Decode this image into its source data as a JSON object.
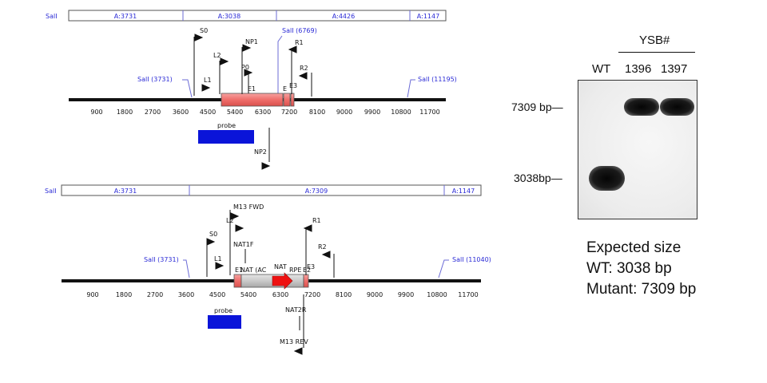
{
  "wt_map": {
    "segments": [
      "A:3731",
      "A:3038",
      "A:4426",
      "A:1147"
    ],
    "end_label_left": "SalI",
    "sites": [
      "SalI (3731)",
      "SalI (6769)",
      "SalI (11195)"
    ],
    "ticks": [
      "900",
      "1800",
      "2700",
      "3600",
      "4500",
      "5400",
      "6300",
      "7200",
      "8100",
      "9000",
      "9900",
      "10800",
      "11700"
    ],
    "primers": [
      "S0",
      "NP1",
      "L2",
      "P0",
      "L1",
      "E1",
      "R1",
      "R2",
      "E",
      "E3",
      "NP2"
    ],
    "probe": "probe"
  },
  "mut_map": {
    "segments": [
      "A:3731",
      "A:7309",
      "A:1147"
    ],
    "end_label_left": "SalI",
    "sites": [
      "SalI (3731)",
      "SalI (11040)"
    ],
    "ticks": [
      "900",
      "1800",
      "2700",
      "3600",
      "4500",
      "5400",
      "6300",
      "7200",
      "8100",
      "9000",
      "9900",
      "10800",
      "11700"
    ],
    "primers": [
      "M13 FWD",
      "L2",
      "R1",
      "S0",
      "NAT1F",
      "R2",
      "L1",
      "E1",
      "NAT (AC",
      "NAT",
      "RPE",
      "E3",
      "E2",
      "NAT2R",
      "M13 REV"
    ],
    "probe": "probe"
  },
  "blot": {
    "group_label": "YSB#",
    "lanes": [
      "WT",
      "1396",
      "1397"
    ],
    "size_markers": [
      "7309 bp—",
      "3038bp—"
    ]
  },
  "expected": {
    "title": "Expected size",
    "wt": "WT: 3038 bp",
    "mutant": "Mutant: 7309 bp"
  }
}
